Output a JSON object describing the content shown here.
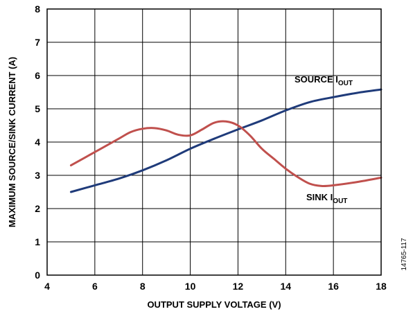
{
  "chart_data": {
    "type": "line",
    "xlabel": "OUTPUT SUPPLY VOLTAGE (V)",
    "ylabel": "MAXIMUM SOURCE/SINK CURRENT (A)",
    "xlim": [
      4,
      18
    ],
    "ylim": [
      0,
      8
    ],
    "x_ticks": [
      4,
      6,
      8,
      10,
      12,
      14,
      16,
      18
    ],
    "y_ticks": [
      0,
      1,
      2,
      3,
      4,
      5,
      6,
      7,
      8
    ],
    "grid": true,
    "series": [
      {
        "name": "SOURCE I",
        "subscript": "OUT",
        "color": "#1f3b7a",
        "x": [
          5,
          6,
          7,
          8,
          9,
          10,
          11,
          12,
          13,
          14,
          15,
          16,
          17,
          18
        ],
        "y": [
          2.5,
          2.7,
          2.9,
          3.15,
          3.45,
          3.8,
          4.1,
          4.38,
          4.65,
          4.95,
          5.2,
          5.35,
          5.48,
          5.58
        ]
      },
      {
        "name": "SINK I",
        "subscript": "OUT",
        "color": "#c0504d",
        "x": [
          5,
          6,
          7,
          7.5,
          8,
          8.5,
          9,
          9.5,
          10,
          10.5,
          11,
          11.5,
          12,
          12.5,
          13,
          13.5,
          14,
          14.5,
          15,
          15.5,
          16,
          17,
          18
        ],
        "y": [
          3.3,
          3.7,
          4.1,
          4.3,
          4.4,
          4.42,
          4.35,
          4.22,
          4.2,
          4.38,
          4.58,
          4.62,
          4.5,
          4.2,
          3.8,
          3.5,
          3.2,
          2.95,
          2.75,
          2.68,
          2.7,
          2.8,
          2.93
        ]
      }
    ],
    "annotations": {
      "source_label": "SOURCE I",
      "sink_label": "SINK I",
      "subscript": "OUT"
    },
    "figure_id": "14765-117"
  }
}
